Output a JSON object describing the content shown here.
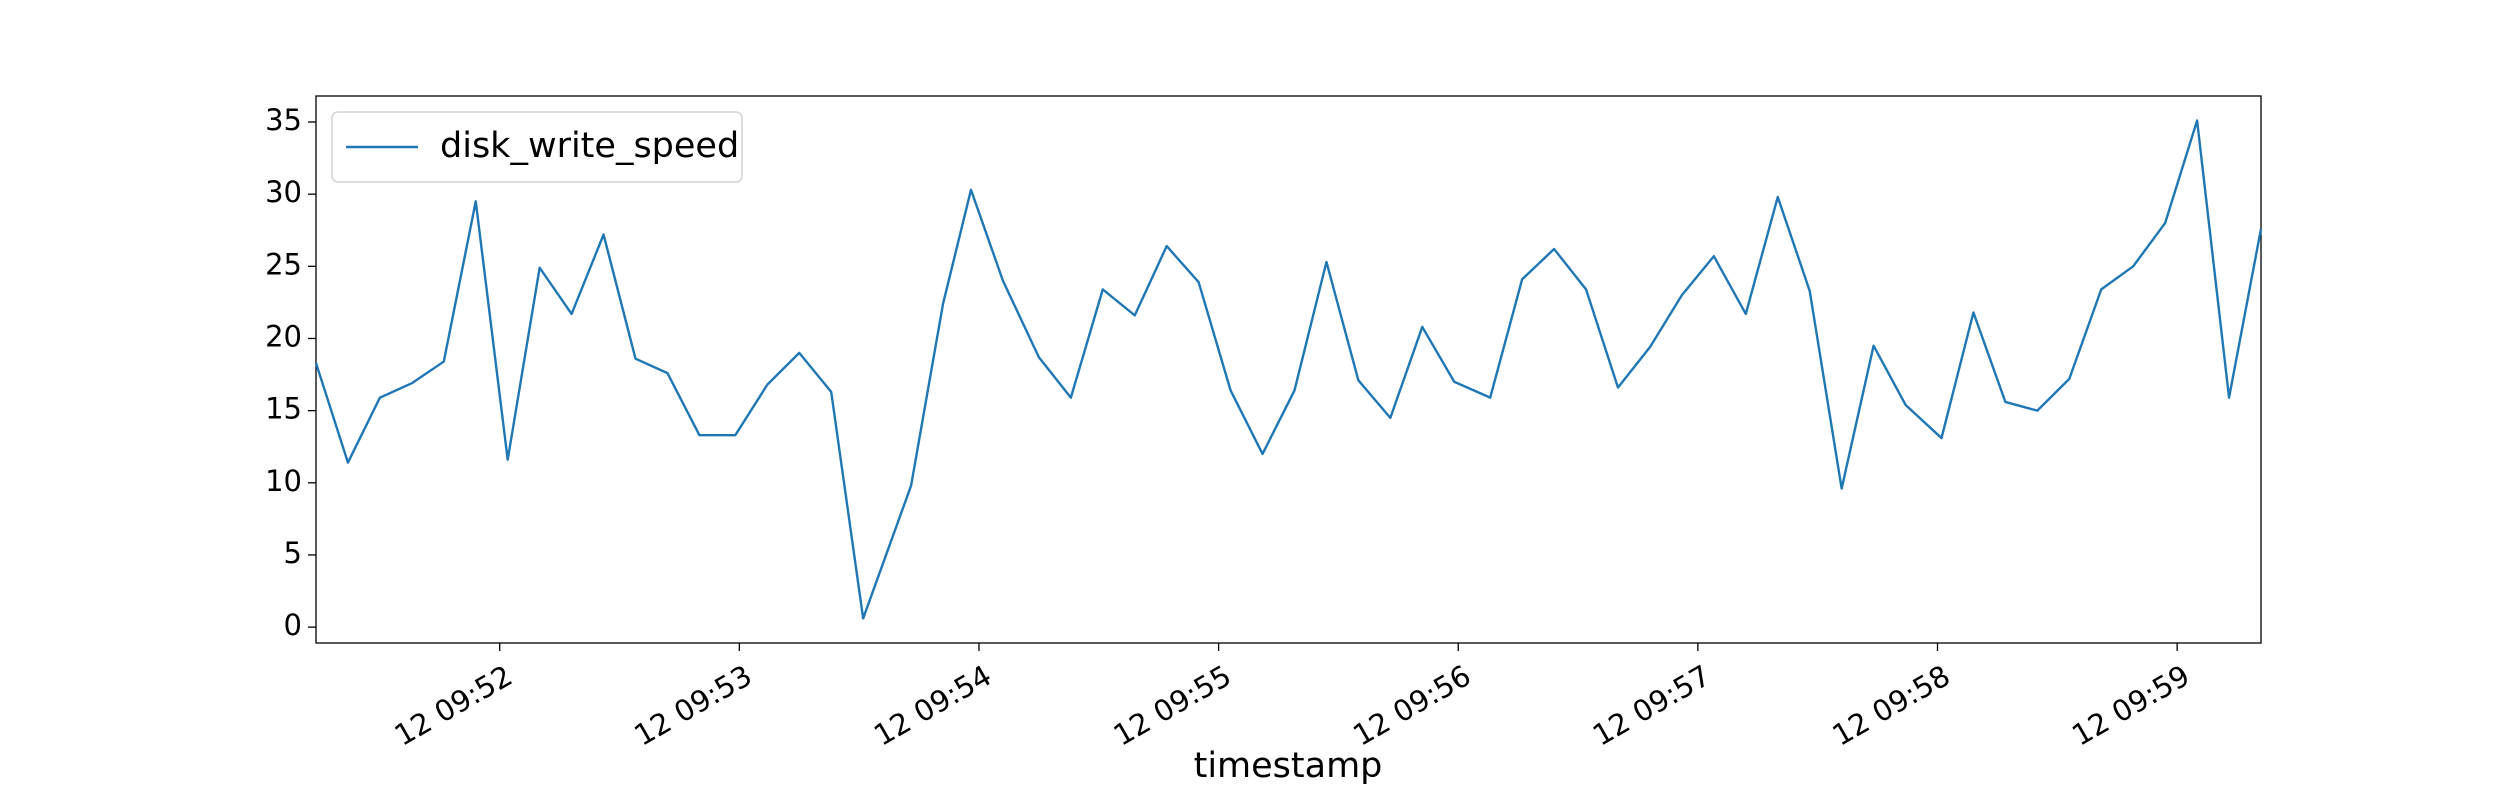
{
  "chart_data": {
    "type": "line",
    "xlabel": "timestamp",
    "x": [
      "12 09:51:14",
      "12 09:51:22",
      "12 09:51:30",
      "12 09:51:38",
      "12 09:51:46",
      "12 09:51:54",
      "12 09:52:02",
      "12 09:52:10",
      "12 09:52:18",
      "12 09:52:26",
      "12 09:52:34",
      "12 09:52:42",
      "12 09:52:50",
      "12 09:52:59",
      "12 09:53:07",
      "12 09:53:15",
      "12 09:53:23",
      "12 09:53:31",
      "12 09:53:43",
      "12 09:53:51",
      "12 09:53:58",
      "12 09:54:06",
      "12 09:54:15",
      "12 09:54:23",
      "12 09:54:31",
      "12 09:54:39",
      "12 09:54:47",
      "12 09:54:55",
      "12 09:55:03",
      "12 09:55:11",
      "12 09:55:19",
      "12 09:55:27",
      "12 09:55:35",
      "12 09:55:43",
      "12 09:55:51",
      "12 09:55:59",
      "12 09:56:08",
      "12 09:56:16",
      "12 09:56:24",
      "12 09:56:32",
      "12 09:56:40",
      "12 09:56:48",
      "12 09:56:56",
      "12 09:57:04",
      "12 09:57:12",
      "12 09:57:20",
      "12 09:57:28",
      "12 09:57:36",
      "12 09:57:44",
      "12 09:57:52",
      "12 09:58:01",
      "12 09:58:09",
      "12 09:58:17",
      "12 09:58:25",
      "12 09:58:33",
      "12 09:58:41",
      "12 09:58:49",
      "12 09:58:57",
      "12 09:59:05",
      "12 09:59:13",
      "12 09:59:21"
    ],
    "series": [
      {
        "name": "disk_write_speed",
        "color": "#1f77b4",
        "values": [
          18.3,
          11.4,
          15.9,
          16.9,
          18.4,
          29.5,
          11.6,
          24.9,
          21.7,
          27.2,
          18.6,
          17.6,
          13.3,
          13.3,
          16.8,
          19.0,
          16.3,
          0.6,
          9.8,
          22.4,
          30.3,
          24.0,
          18.7,
          15.9,
          23.4,
          21.6,
          26.4,
          23.9,
          16.4,
          12.0,
          16.4,
          25.3,
          17.1,
          14.5,
          20.8,
          17.0,
          15.9,
          24.1,
          26.2,
          23.4,
          16.6,
          19.4,
          23.0,
          25.7,
          21.7,
          29.8,
          23.3,
          9.6,
          19.5,
          15.4,
          13.1,
          21.8,
          15.6,
          15.0,
          17.2,
          23.4,
          25.0,
          28.0,
          35.1,
          15.9,
          27.6
        ]
      }
    ],
    "xlim": [
      "12 09:51:14",
      "12 09:59:21"
    ],
    "xticks": [
      "12 09:52",
      "12 09:53",
      "12 09:54",
      "12 09:55",
      "12 09:56",
      "12 09:57",
      "12 09:58",
      "12 09:59"
    ],
    "ylim": [
      -1.1,
      36.8
    ],
    "yticks": [
      0,
      5,
      10,
      15,
      20,
      25,
      30,
      35
    ],
    "grid": false,
    "legend": "upper left"
  }
}
